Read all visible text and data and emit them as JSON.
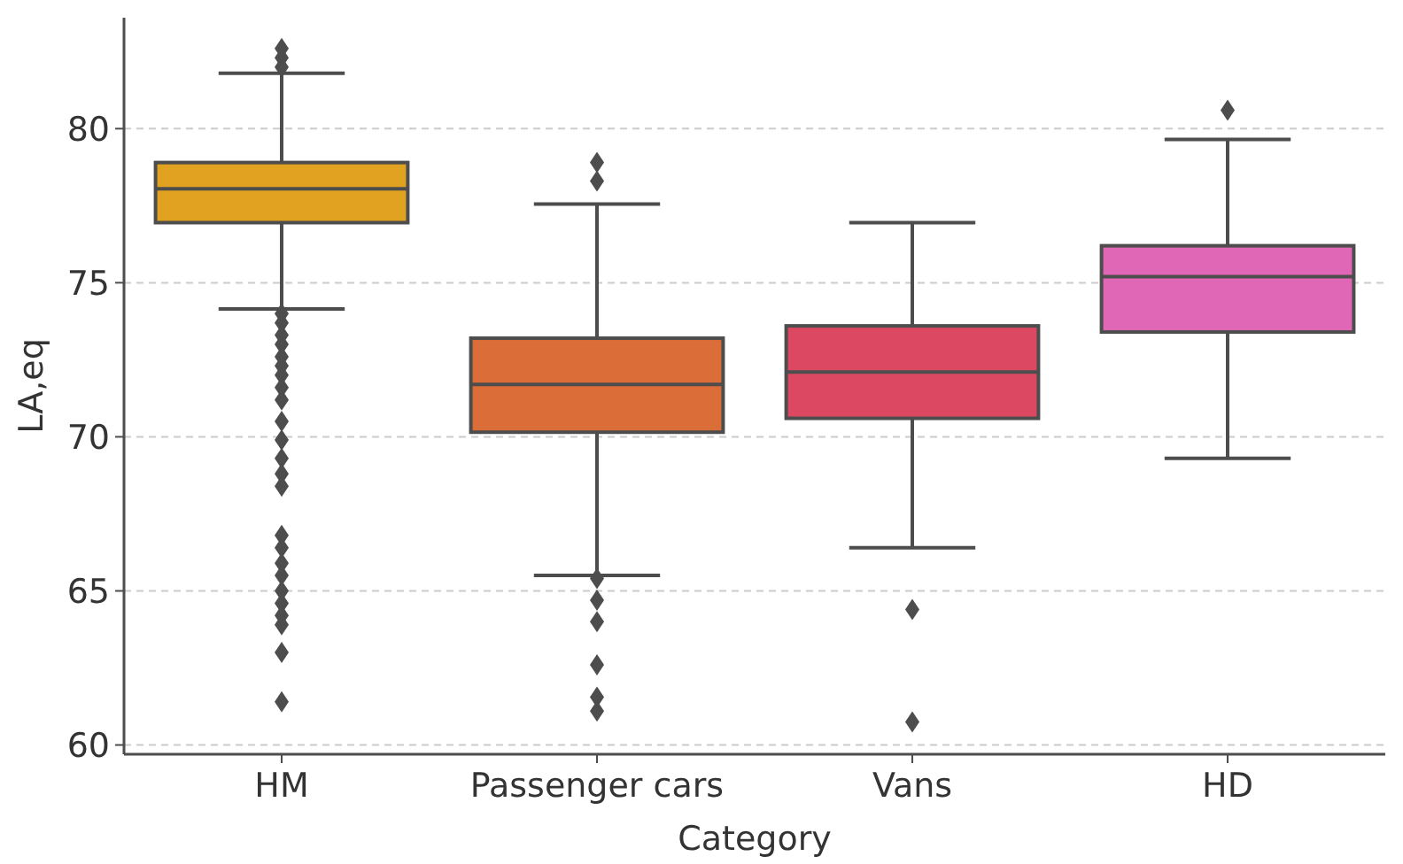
{
  "chart_data": {
    "type": "box",
    "xlabel": "Category",
    "ylabel": "LA,eq",
    "categories": [
      "HM",
      "Passenger cars",
      "Vans",
      "HD"
    ],
    "colors": [
      "#e0a220",
      "#da6d38",
      "#dc4862",
      "#e066b6"
    ],
    "ylim": [
      59.7,
      83.6
    ],
    "yticks": [
      60,
      65,
      70,
      75,
      80
    ],
    "grid": "y",
    "boxes": [
      {
        "low": 74.15,
        "q1": 76.95,
        "median": 78.05,
        "q3": 78.9,
        "high": 81.8,
        "outliers": [
          82.6,
          82.3,
          82.0,
          74.0,
          73.7,
          73.3,
          73.0,
          72.6,
          72.3,
          72.0,
          71.6,
          71.2,
          70.5,
          69.9,
          69.3,
          68.8,
          68.4,
          66.8,
          66.4,
          65.9,
          65.5,
          65.0,
          64.6,
          64.2,
          63.9,
          63.0,
          61.4
        ]
      },
      {
        "low": 65.5,
        "q1": 70.15,
        "median": 71.7,
        "q3": 73.2,
        "high": 77.55,
        "outliers": [
          78.9,
          78.3,
          65.4,
          64.7,
          64.0,
          62.6,
          61.55,
          61.1
        ]
      },
      {
        "low": 66.4,
        "q1": 70.6,
        "median": 72.1,
        "q3": 73.6,
        "high": 76.95,
        "outliers": [
          64.4,
          60.75
        ]
      },
      {
        "low": 69.3,
        "q1": 73.4,
        "median": 75.2,
        "q3": 76.2,
        "high": 79.65,
        "outliers": [
          80.6
        ]
      }
    ]
  }
}
